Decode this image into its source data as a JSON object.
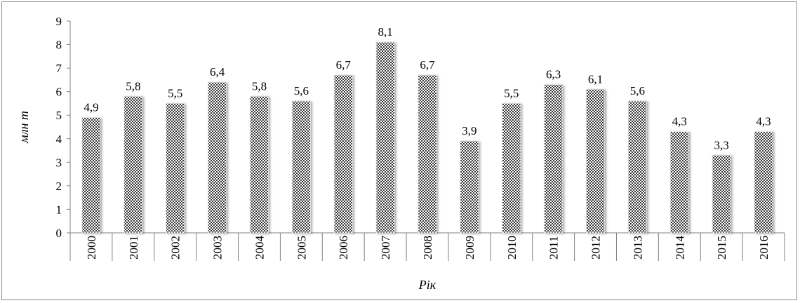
{
  "chart_data": {
    "type": "bar",
    "categories": [
      "2000",
      "2001",
      "2002",
      "2003",
      "2004",
      "2005",
      "2006",
      "2007",
      "2008",
      "2009",
      "2010",
      "2011",
      "2012",
      "2013",
      "2014",
      "2015",
      "2016"
    ],
    "values": [
      4.9,
      5.8,
      5.5,
      6.4,
      5.8,
      5.6,
      6.7,
      8.1,
      6.7,
      3.9,
      5.5,
      6.3,
      6.1,
      5.6,
      4.3,
      3.3,
      4.3
    ],
    "value_labels": [
      "4,9",
      "5,8",
      "5,5",
      "6,4",
      "5,8",
      "5,6",
      "6,7",
      "8,1",
      "6,7",
      "3,9",
      "5,5",
      "6,3",
      "6,1",
      "5,6",
      "4,3",
      "3,3",
      "4,3"
    ],
    "yticks": [
      "0",
      "1",
      "2",
      "3",
      "4",
      "5",
      "6",
      "7",
      "8",
      "9"
    ],
    "ylim": [
      0,
      9
    ],
    "xlabel": "Рік",
    "ylabel": "млн т",
    "title": "",
    "grid": false,
    "bar_pattern": "crosshatch",
    "colors": {
      "bar_dark": "#404040",
      "bar_light": "#ffffff",
      "axis": "#808080",
      "frame": "#8c8c8c"
    }
  }
}
